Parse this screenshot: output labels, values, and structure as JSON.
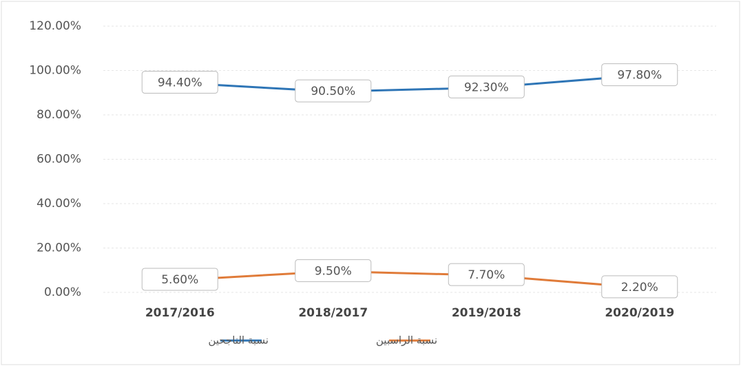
{
  "chart_data": {
    "type": "line",
    "categories": [
      "2017/2016",
      "2018/2017",
      "2019/2018",
      "2020/2019"
    ],
    "series": [
      {
        "name": "نسبة الناجحين",
        "color": "#2e75b6",
        "values": [
          94.4,
          90.5,
          92.3,
          97.8
        ],
        "value_labels": [
          "94.40%",
          "90.50%",
          "92.30%",
          "97.80%"
        ]
      },
      {
        "name": "نسبة الراسبين",
        "color": "#e07b39",
        "values": [
          5.6,
          9.5,
          7.7,
          2.2
        ],
        "value_labels": [
          "5.60%",
          "9.50%",
          "7.70%",
          "2.20%"
        ]
      }
    ],
    "ylim": [
      0,
      120
    ],
    "yticks": [
      {
        "value": 0,
        "label": "0.00%"
      },
      {
        "value": 20,
        "label": "20.00%"
      },
      {
        "value": 40,
        "label": "40.00%"
      },
      {
        "value": 60,
        "label": "60.00%"
      },
      {
        "value": 80,
        "label": "80.00%"
      },
      {
        "value": 100,
        "label": "100.00%"
      },
      {
        "value": 120,
        "label": "120.00%"
      }
    ],
    "grid": true,
    "legend": "bottom"
  }
}
